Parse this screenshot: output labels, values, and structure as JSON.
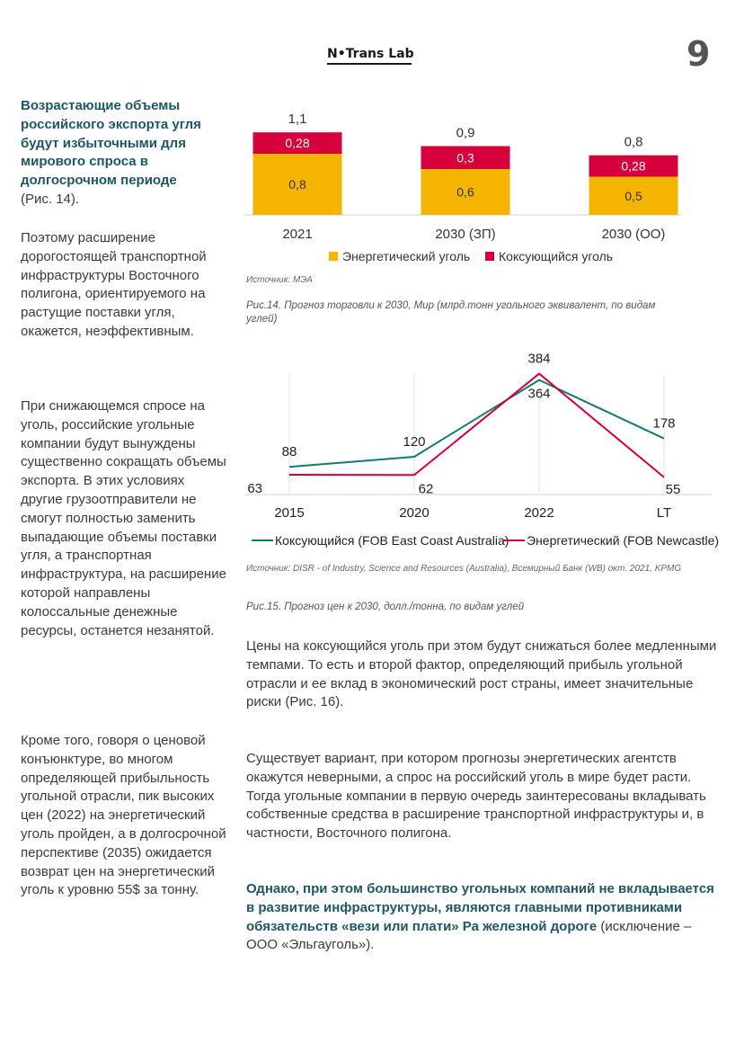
{
  "header": {
    "logo_text": "N•Trans Lab",
    "page_number": "9"
  },
  "left_column": {
    "lead_bold": "Возрастающие объемы российского экспорта угля будут избыточными для мирового спроса в долгосрочном периоде",
    "lead_ref": "(Рис. 14).",
    "para2": "Поэтому расширение дорогостоящей транспортной инфраструктуры Восточного полигона, ориентируемого на растущие поставки угля, окажется, неэффективным.",
    "para3": "При снижающемся спросе на уголь, российские угольные компании будут вынуждены существенно сокращать объемы экспорта. В этих условиях другие грузоотправители не смогут полностью заменить выпадающие объемы поставки угля, а транспортная инфраструктура, на расширение которой направлены колоссальные денежные ресурсы, останется незанятой.",
    "para4": "Кроме того, говоря о ценовой конъюнктуре, во многом определяющей прибыльность угольной отрасли, пик высоких цен (2022) на энергетический уголь пройден, а в долгосрочной перспективе (2035) ожидается возврат цен на энергетический уголь к уровню 55$ за тонну."
  },
  "figure14": {
    "source": "Источник: МЭА",
    "caption": "Рис.14. Прогноз торговли к 2030, Мир (млрд.тонн угольного эквивалент, по видам углей)"
  },
  "figure15": {
    "source": "Источник: DISR -  of Industry, Science and Resources (Australia),  Всемирный Банк (WB) окт. 2021, KPMG",
    "caption": "Рис.15. Прогноз цен к 2030, долл./тонна, по видам углей"
  },
  "right_text": {
    "para1": "Цены на коксующийся уголь при этом будут снижаться более медленными темпами. То есть и второй фактор, определяющий прибыль угольной отрасли и ее вклад в экономический рост страны, имеет значительные риски (Рис. 16).",
    "para2": "Существует вариант, при котором прогнозы энергетических агентств окажутся неверными, а спрос на российский уголь в мире будет расти. Тогда угольные компании в первую очередь заинтересованы вкладывать собственные средства в расширение транспортной инфраструктуры и, в частности, Восточного полигона.",
    "para3_bold": "Однако, при этом большинство угольных компаний не вкладывается в развитие инфраструктуры, являются главными противниками обязательств «вези или плати» Ра железной дороге",
    "para3_rest": " (исключение – ООО «Эльгауголь»)."
  },
  "chart_data": [
    {
      "type": "bar",
      "stacked": true,
      "categories": [
        "2021",
        "2030 (ЗП)",
        "2030 (ОО)"
      ],
      "series": [
        {
          "name": "Энергетический уголь",
          "values": [
            0.8,
            0.6,
            0.5
          ],
          "labels": [
            "0,8",
            "0,6",
            "0,5"
          ],
          "color": "#f5b400"
        },
        {
          "name": "Коксующийся уголь",
          "values": [
            0.28,
            0.3,
            0.28
          ],
          "labels": [
            "0,28",
            "0,3",
            "0,28"
          ],
          "color": "#d6003c"
        }
      ],
      "totals": [
        1.1,
        0.9,
        0.8
      ],
      "total_labels": [
        "1,1",
        "0,9",
        "0,8"
      ],
      "ylim": [
        0,
        1.2
      ],
      "legend_position": "bottom"
    },
    {
      "type": "line",
      "categories": [
        "2015",
        "2020",
        "2022",
        "LT"
      ],
      "series": [
        {
          "name": "Коксующийся (FOB East Coast Australia)",
          "values": [
            88,
            120,
            364,
            178
          ],
          "labels": [
            "88",
            "120",
            "364",
            "178"
          ],
          "color": "#137a74"
        },
        {
          "name": "Энергетический (FOB Newcastle)",
          "values": [
            63,
            62,
            384,
            55
          ],
          "labels": [
            "63",
            "62",
            "384",
            "55"
          ],
          "color": "#d6003c"
        }
      ],
      "ylim": [
        0,
        400
      ],
      "legend_position": "bottom"
    }
  ]
}
